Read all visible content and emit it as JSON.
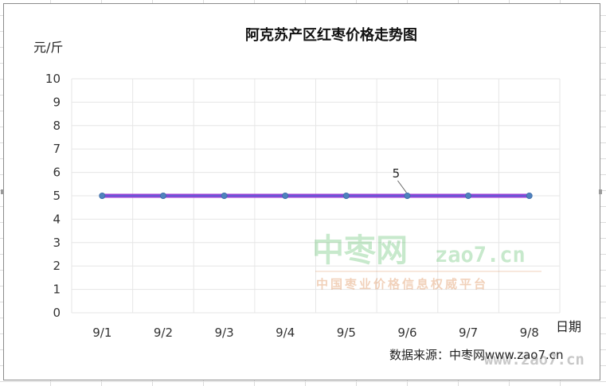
{
  "chart_data": {
    "type": "line",
    "title": "阿克苏产区红枣价格走势图",
    "ylabel": "元/斤",
    "xlabel": "日期",
    "categories": [
      "9/1",
      "9/2",
      "9/3",
      "9/4",
      "9/5",
      "9/6",
      "9/7",
      "9/8"
    ],
    "ylim": [
      0,
      10
    ],
    "yticks": [
      0,
      1,
      2,
      3,
      4,
      5,
      6,
      7,
      8,
      9,
      10
    ],
    "grid": true,
    "series": [
      {
        "values": [
          5,
          5,
          5,
          5,
          5,
          5,
          5,
          5
        ],
        "color": "#9b3fd6",
        "marker_color": "#4f81bd"
      }
    ],
    "data_labels": [
      {
        "index": 5,
        "text": "5"
      }
    ],
    "source": "数据来源：中枣网www.zao7.cn"
  },
  "watermark": {
    "brand": "中枣网",
    "url": "zao7.cn",
    "slogan": "中国枣业价格信息权威平台",
    "corner": "www.zao7.cn"
  },
  "colors": {
    "line": "#9b3fd6",
    "line_highlight": "#3b6fd4",
    "marker": "#4f81bd",
    "grid": "#e6e6e6",
    "watermark_green": "#3bb24a",
    "watermark_orange": "#d2691e"
  }
}
